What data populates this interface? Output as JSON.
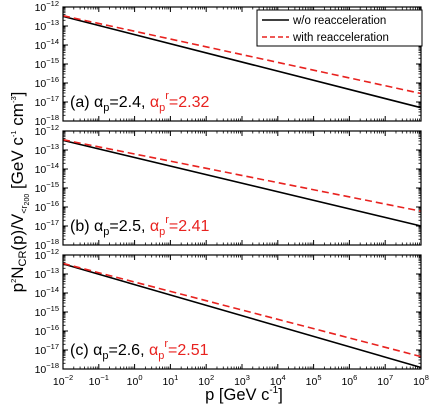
{
  "chart_data": {
    "type": "line",
    "xlabel": "p [GeV c",
    "xlabel_sup": "-1",
    "xlabel_end": "]",
    "ylabel": {
      "a": "p",
      "b": "2",
      "c": "N",
      "d": "CR",
      "e": "(p)/V",
      "f": "<r",
      "g": "200",
      "h": " [GeV c",
      "i": "-1",
      "j": " cm",
      "k": "-3",
      "l": "]"
    },
    "x_scale": "log",
    "y_scale": "log",
    "xlim": [
      0.01,
      100000000
    ],
    "ylim": [
      1e-18,
      1e-12
    ],
    "x_tick_exponents": [
      -2,
      -1,
      0,
      1,
      2,
      3,
      4,
      5,
      6,
      7,
      8
    ],
    "y_tick_exponents": [
      -18,
      -17,
      -16,
      -15,
      -14,
      -13,
      -12
    ],
    "tick_base": "10",
    "legend": {
      "placement": "top-right",
      "entries": [
        {
          "label": "w/o reacceleration",
          "color": "#000000",
          "style": "solid"
        },
        {
          "label": "with reacceleration",
          "color": "#e8221f",
          "style": "dashed"
        }
      ]
    },
    "panels": [
      {
        "annotation": {
          "prefix": "(a) ",
          "alpha": "α",
          "sub": "p",
          "value": "=2.4, ",
          "alpha_r": "α",
          "sub_r": "p",
          "sup_r": "r",
          "value_r": "=2.32"
        },
        "series": [
          {
            "name": "w/o reacceleration",
            "x": [
              0.01,
              100000000
            ],
            "y": [
              3.2e-13,
              5e-18
            ]
          },
          {
            "name": "with reacceleration",
            "x": [
              0.01,
              100000000
            ],
            "y": [
              3.5e-13,
              2.8e-17
            ]
          }
        ]
      },
      {
        "annotation": {
          "prefix": "(b) ",
          "alpha": "α",
          "sub": "p",
          "value": "=2.5, ",
          "alpha_r": "α",
          "sub_r": "p",
          "sup_r": "r",
          "value_r": "=2.41"
        },
        "series": [
          {
            "name": "w/o reacceleration",
            "x": [
              0.01,
              100000000
            ],
            "y": [
              3.2e-13,
              1e-17
            ]
          },
          {
            "name": "with reacceleration",
            "x": [
              0.01,
              100000000
            ],
            "y": [
              3.5e-13,
              6e-17
            ]
          }
        ]
      },
      {
        "annotation": {
          "prefix": "(c) ",
          "alpha": "α",
          "sub": "p",
          "value": "=2.6, ",
          "alpha_r": "α",
          "sub_r": "p",
          "sup_r": "r",
          "value_r": "=2.51"
        },
        "series": [
          {
            "name": "w/o reacceleration",
            "x": [
              0.01,
              100000000
            ],
            "y": [
              3.4e-13,
              1.2e-18
            ]
          },
          {
            "name": "with reacceleration",
            "x": [
              0.01,
              100000000
            ],
            "y": [
              3.6e-13,
              4.5e-18
            ]
          }
        ]
      }
    ]
  },
  "colors": {
    "black_line": "#000000",
    "red_line": "#e8221f",
    "red_text": "#e8221f"
  }
}
